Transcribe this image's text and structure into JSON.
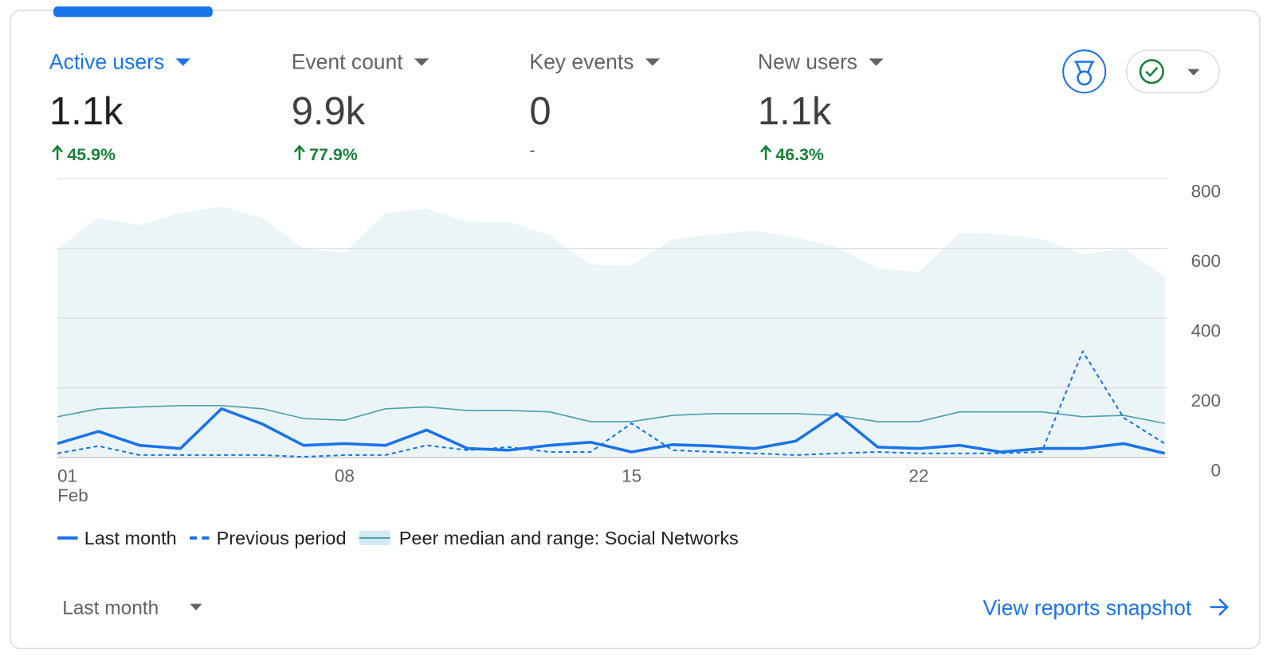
{
  "metrics": [
    {
      "label": "Active users",
      "value": "1.1k",
      "change": "45.9%",
      "trend": "up",
      "selected": true
    },
    {
      "label": "Event count",
      "value": "9.9k",
      "change": "77.9%",
      "trend": "up"
    },
    {
      "label": "Key events",
      "value": "0",
      "change": "-"
    },
    {
      "label": "New users",
      "value": "1.1k",
      "change": "46.3%",
      "trend": "up"
    }
  ],
  "chart_data": {
    "type": "line",
    "categories": [
      "01",
      null,
      null,
      null,
      null,
      null,
      null,
      "08",
      null,
      null,
      null,
      null,
      null,
      null,
      "15",
      null,
      null,
      null,
      null,
      null,
      null,
      "22",
      null,
      null,
      null,
      null,
      null,
      null
    ],
    "x_month_label": "Feb",
    "ylim": [
      0,
      800
    ],
    "yticks": [
      0,
      200,
      400,
      600,
      800
    ],
    "grid": true,
    "series": [
      {
        "name": "Last month",
        "color": "#1a73e8",
        "style": "solid",
        "values": [
          40,
          75,
          35,
          26,
          140,
          96,
          35,
          40,
          35,
          79,
          26,
          21,
          35,
          44,
          16,
          37,
          33,
          26,
          47,
          126,
          30,
          26,
          35,
          16,
          26,
          26,
          40,
          12
        ]
      },
      {
        "name": "Previous period",
        "color": "#1a73e8",
        "style": "dashed",
        "values": [
          12,
          33,
          7,
          7,
          7,
          7,
          2,
          7,
          7,
          35,
          21,
          30,
          16,
          16,
          98,
          21,
          16,
          12,
          7,
          12,
          16,
          12,
          12,
          12,
          16,
          305,
          114,
          40
        ]
      },
      {
        "name": "Peer median and range: Social Networks",
        "color": "#4a9fae",
        "style": "range",
        "values": [
          117,
          140,
          145,
          149,
          149,
          140,
          112,
          107,
          140,
          145,
          135,
          135,
          131,
          103,
          103,
          121,
          126,
          126,
          126,
          121,
          103,
          103,
          131,
          131,
          131,
          117,
          121,
          98
        ],
        "range_upper": [
          600,
          688,
          667,
          702,
          721,
          688,
          600,
          588,
          702,
          714,
          677,
          677,
          637,
          555,
          551,
          627,
          641,
          651,
          632,
          604,
          544,
          532,
          646,
          641,
          627,
          583,
          600,
          518
        ]
      }
    ]
  },
  "footer": {
    "period": "Last month",
    "link": "View reports snapshot"
  }
}
